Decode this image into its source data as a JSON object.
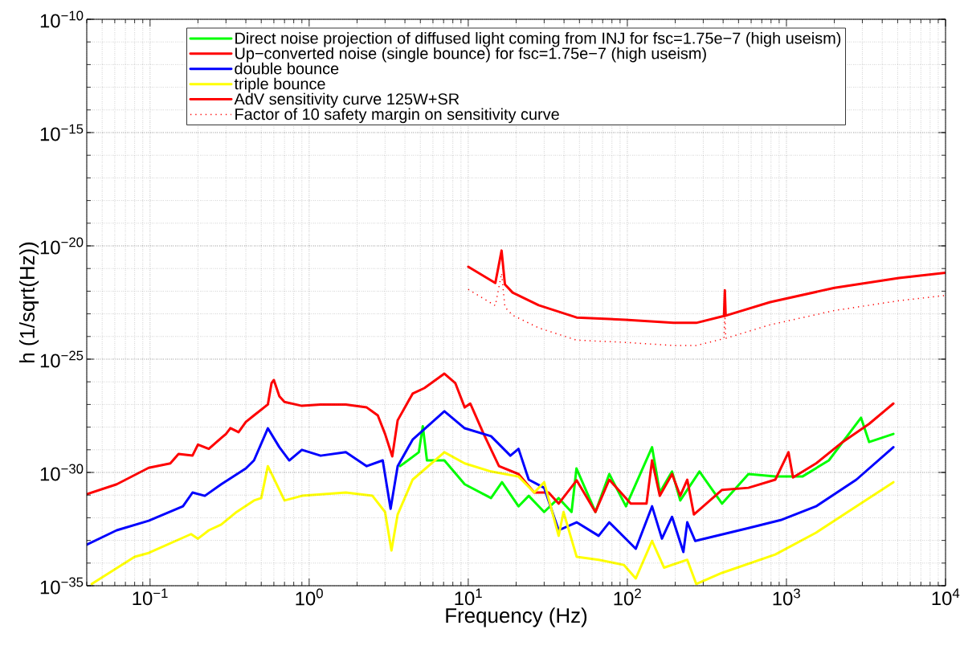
{
  "chart_data": {
    "type": "line",
    "xlabel": "Frequency (Hz)",
    "ylabel": "h (1/sqrt(Hz))",
    "log": "xy",
    "grid": true,
    "legend": "top",
    "xlim": [
      0.04,
      10000
    ],
    "ylim": [
      1e-35,
      1e-10
    ],
    "xticks": [
      {
        "value": 0.1,
        "label": "10$^{−1}$"
      },
      {
        "value": 1,
        "label": "10$^{0}$"
      },
      {
        "value": 10,
        "label": "10$^{1}$"
      },
      {
        "value": 100,
        "label": "10$^{2}$"
      },
      {
        "value": 1000,
        "label": "10$^{3}$"
      },
      {
        "value": 10000,
        "label": "10$^{4}$"
      }
    ],
    "yticks": [
      {
        "value": 1e-35,
        "label": "10$^{−35}$"
      },
      {
        "value": 1e-30,
        "label": "10$^{−30}$"
      },
      {
        "value": 1e-25,
        "label": "10$^{−25}$"
      },
      {
        "value": 1e-20,
        "label": "10$^{−20}$"
      },
      {
        "value": 1e-15,
        "label": "10$^{−15}$"
      },
      {
        "value": 1e-10,
        "label": "10$^{−10}$"
      }
    ],
    "series": [
      {
        "name": "Direct noise projection of diffused light coming from INJ for fsc=1.75e−7 (high useism)",
        "color": "#00ff00",
        "x": [
          3.73,
          4.89,
          5.18,
          5.5,
          7.08,
          9.5,
          13.9,
          16.3,
          20.7,
          24,
          30,
          37,
          44.6,
          47.9,
          63,
          77,
          98,
          143,
          160,
          191,
          215,
          284,
          394,
          577,
          851,
          1259,
          1848,
          2944,
          3311,
          4700
        ],
        "values": [
          1.9e-30,
          7.8e-30,
          1.1e-28,
          3.4e-30,
          3.4e-30,
          3e-31,
          7.4e-32,
          3.7e-31,
          3.2e-32,
          9.3e-32,
          1.8e-32,
          7.4e-32,
          1.8e-32,
          1.5e-30,
          1.8e-32,
          8.5e-31,
          3.2e-32,
          1.3e-29,
          1.3e-31,
          1.1e-30,
          5.8e-32,
          1.1e-30,
          4.2e-32,
          8.5e-31,
          6.6e-31,
          6.6e-31,
          3.4e-30,
          2.6e-28,
          2.2e-29,
          5e-29
        ]
      },
      {
        "name": "Up−converted noise (single bounce) for fsc=1.75e−7 (high useism)",
        "color": "#ff0000",
        "x": [
          0.04,
          0.0617,
          0.098,
          0.134,
          0.151,
          0.185,
          0.2,
          0.234,
          0.28,
          0.3,
          0.32,
          0.36,
          0.4,
          0.45,
          0.55,
          0.58,
          0.6,
          0.65,
          0.7,
          0.9,
          1.18,
          1.7,
          2.3,
          2.7,
          3.0,
          3.33,
          3.6,
          4.47,
          5.3,
          7.08,
          8.3,
          9.5,
          10.3,
          12.5,
          15.6,
          20.7,
          26,
          32,
          37,
          48,
          63,
          77,
          88,
          105,
          132,
          143,
          160,
          191,
          215,
          238,
          262,
          394,
          577,
          851,
          1030,
          1100,
          1535,
          2255,
          3311,
          4700
        ],
        "values": [
          1.1e-31,
          3e-31,
          1.6e-30,
          2.5e-30,
          6.6e-30,
          5.6e-30,
          1.7e-29,
          1.1e-29,
          3.3e-29,
          5e-29,
          9e-29,
          6e-29,
          1.7e-28,
          3.3e-28,
          1e-27,
          8.7e-27,
          1.2e-26,
          2.3e-27,
          1.3e-27,
          8.7e-28,
          1e-27,
          1e-27,
          7.4e-28,
          3.3e-28,
          5e-29,
          5.1e-30,
          2e-28,
          3e-27,
          5.3e-27,
          2.3e-26,
          8.7e-27,
          7.4e-28,
          1.1e-27,
          5e-29,
          1.9e-30,
          8.5e-31,
          1.3e-31,
          1.3e-31,
          4.2e-32,
          4.5e-31,
          1.8e-32,
          4.8e-31,
          1.7e-31,
          4.2e-32,
          4.2e-32,
          3.4e-30,
          9.3e-32,
          8.5e-31,
          9.3e-32,
          4.8e-31,
          1.4e-32,
          1.7e-31,
          2.1e-31,
          4.8e-31,
          7.8e-30,
          6e-31,
          2.5e-30,
          2.2e-29,
          1.4e-28,
          1.1e-27
        ]
      },
      {
        "name": "double bounce",
        "color": "#0000ff",
        "x": [
          0.04,
          0.0617,
          0.098,
          0.161,
          0.185,
          0.221,
          0.28,
          0.4,
          0.45,
          0.55,
          0.65,
          0.75,
          0.9,
          1.18,
          1.7,
          2.3,
          2.9,
          3.25,
          3.6,
          4.47,
          7.08,
          9.5,
          13.9,
          18.4,
          20.7,
          24,
          30,
          37,
          48,
          66,
          77,
          113,
          143,
          165,
          191,
          225,
          238,
          267,
          577,
          920,
          1535,
          2750,
          4700
        ],
        "values": [
          6.5e-34,
          2.8e-33,
          7.4e-33,
          3.2e-32,
          1.3e-31,
          9.3e-32,
          3e-31,
          1.5e-30,
          3.4e-30,
          8.9e-29,
          1.3e-29,
          3.4e-30,
          1e-29,
          5.5e-30,
          7.8e-30,
          1.9e-30,
          3.4e-30,
          2.5e-32,
          1.9e-30,
          2.8e-29,
          5e-28,
          8.9e-29,
          4e-29,
          5.5e-30,
          1.1e-29,
          4.8e-31,
          2.1e-31,
          2.8e-33,
          6.3e-33,
          1.6e-33,
          6.3e-33,
          4.3e-34,
          3.2e-32,
          1.2e-33,
          1.1e-32,
          3.1e-34,
          6.3e-33,
          9.5e-34,
          3.5e-33,
          7.9e-33,
          3.2e-32,
          4.8e-31,
          1.3e-29
        ]
      },
      {
        "name": "triple bounce",
        "color": "#ffff00",
        "x": [
          0.043,
          0.08,
          0.098,
          0.181,
          0.2,
          0.234,
          0.28,
          0.35,
          0.45,
          0.5,
          0.55,
          0.7,
          0.9,
          1.7,
          2.5,
          3.0,
          3.29,
          3.6,
          4.47,
          7.08,
          9.5,
          13.9,
          20.7,
          26,
          30,
          37,
          39.7,
          48,
          66,
          95,
          113,
          143,
          170,
          238,
          271,
          394,
          851,
          1535,
          2750,
          4700
        ],
        "values": [
          1.2e-35,
          1.9e-34,
          2.8e-34,
          1.9e-33,
          1.2e-33,
          2.8e-33,
          5e-33,
          1.8e-32,
          5.8e-32,
          7.4e-32,
          1.9e-30,
          5.8e-32,
          9.3e-32,
          1.3e-31,
          9.3e-32,
          1.8e-32,
          3.6e-34,
          1.4e-32,
          4.8e-31,
          7.8e-30,
          2.5e-30,
          1.1e-30,
          6.6e-31,
          1.3e-31,
          3.7e-31,
          1.6e-33,
          1.8e-32,
          1.9e-34,
          1.4e-34,
          8.3e-35,
          2.1e-35,
          9.5e-34,
          6.3e-35,
          1.4e-34,
          1.2e-35,
          3.7e-35,
          2.4e-34,
          2.2e-33,
          3.2e-32,
          3.7e-31
        ]
      },
      {
        "name": "AdV sensitivity curve 125W+SR",
        "color": "#ff0000",
        "x": [
          10,
          14.8,
          16.2,
          17,
          19,
          27.7,
          48,
          97,
          195,
          271,
          405,
          410,
          415,
          791,
          2004,
          5093,
          10000
        ],
        "values": [
          1.2e-21,
          2.3e-22,
          6.2e-21,
          2e-22,
          8.7e-23,
          2.4e-23,
          6.9e-24,
          5.5e-24,
          4e-24,
          4e-24,
          8.1e-24,
          1.1e-22,
          8.3e-24,
          3.3e-23,
          1.4e-22,
          3.8e-22,
          6.5e-22
        ]
      },
      {
        "name": "Factor of 10 safety margin on sensitivity curve",
        "color": "#ff0000",
        "line_style": "dotted",
        "x": [
          10,
          14.8,
          16.2,
          17,
          19,
          27.7,
          48,
          97,
          195,
          271,
          405,
          410,
          415,
          791,
          2004,
          5093,
          10000
        ],
        "values": [
          1.2e-22,
          2.3e-23,
          6.2e-22,
          2e-23,
          8.7e-24,
          2.4e-24,
          6.9e-25,
          5.5e-25,
          4e-25,
          4e-25,
          8.1e-25,
          1.1e-23,
          8.3e-25,
          3.3e-24,
          1.4e-23,
          3.8e-23,
          6.5e-23
        ]
      }
    ]
  }
}
